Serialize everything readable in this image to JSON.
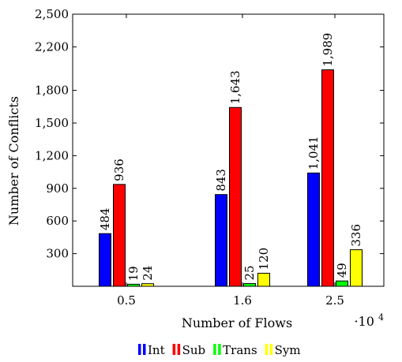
{
  "chart_data": {
    "type": "bar",
    "categories": [
      "0.5",
      "1.6",
      "2.5"
    ],
    "series": [
      {
        "name": "Int",
        "color": "#0000ff",
        "values": [
          484,
          843,
          1041
        ]
      },
      {
        "name": "Sub",
        "color": "#ff0000",
        "values": [
          936,
          1643,
          1989
        ]
      },
      {
        "name": "Trans",
        "color": "#00ff00",
        "values": [
          19,
          25,
          49
        ]
      },
      {
        "name": "Sym",
        "color": "#ffff00",
        "values": [
          24,
          120,
          336
        ]
      }
    ],
    "data_labels": [
      [
        "484",
        "843",
        "1,041"
      ],
      [
        "936",
        "1,643",
        "1,989"
      ],
      [
        "19",
        "25",
        "49"
      ],
      [
        "24",
        "120",
        "336"
      ]
    ],
    "ylim": [
      0,
      2500
    ],
    "yticks": [
      {
        "value": 300,
        "label": "300"
      },
      {
        "value": 600,
        "label": "600"
      },
      {
        "value": 900,
        "label": "900"
      },
      {
        "value": 1200,
        "label": "1,200"
      },
      {
        "value": 1500,
        "label": "1,500"
      },
      {
        "value": 1800,
        "label": "1,800"
      },
      {
        "value": 2200,
        "label": "2,200"
      },
      {
        "value": 2500,
        "label": "2,500"
      }
    ],
    "xlabel": "Number of Flows",
    "ylabel": "Number of Conflicts",
    "x_scale_note": "·10",
    "x_scale_exponent": "4",
    "legend_position": "bottom-center",
    "grid": false
  }
}
